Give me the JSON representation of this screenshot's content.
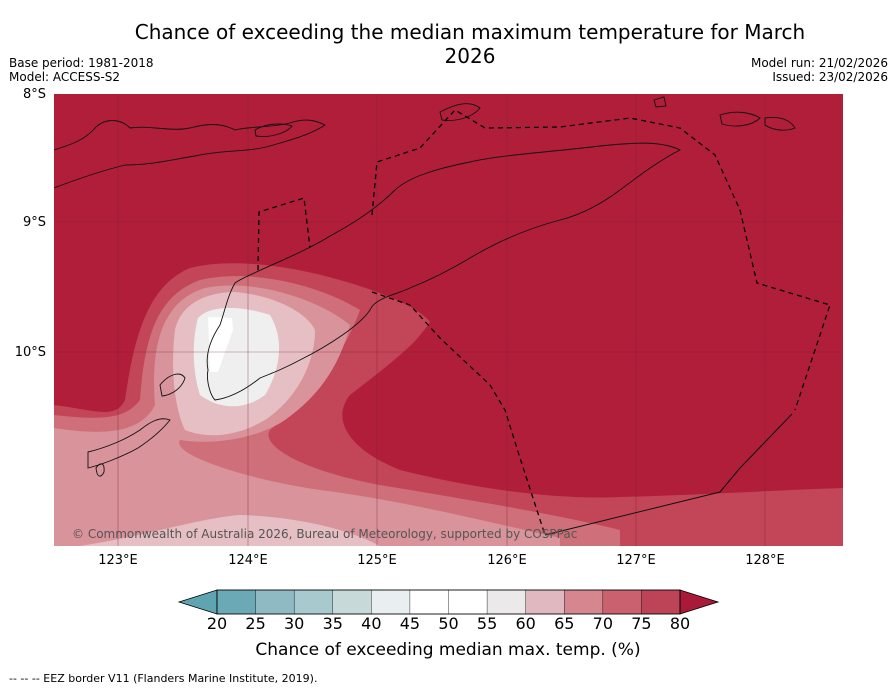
{
  "title": "Chance of exceeding the median maximum temperature for March 2026",
  "meta_left": {
    "base_period": "Base period: 1981-2018",
    "model": "Model: ACCESS-S2"
  },
  "meta_right": {
    "model_run": "Model run: 21/02/2026",
    "issued": "Issued: 23/02/2026"
  },
  "latitude_labels": [
    "8°S",
    "9°S",
    "10°S"
  ],
  "longitude_labels": [
    "123°E",
    "124°E",
    "125°E",
    "126°E",
    "127°E",
    "128°E"
  ],
  "copyright": "© Commonwealth of Australia 2026, Bureau of Meteorology, supported by COSPPac",
  "colorbar": {
    "label": "Chance of exceeding median max. temp. (%)",
    "ticks": [
      "20",
      "25",
      "30",
      "35",
      "40",
      "45",
      "50",
      "55",
      "60",
      "65",
      "70",
      "75",
      "80"
    ],
    "colors": [
      "#5fa4b1",
      "#6ba9b7",
      "#8fbac4",
      "#a8c9cd",
      "#c8d9d9",
      "#e9eef0",
      "#ffffff",
      "#ffffff",
      "#ebe9ea",
      "#e0b8bf",
      "#d5868f",
      "#c9626e",
      "#bd4456",
      "#a81a38"
    ]
  },
  "legend_note": "--  --  -- EEZ border V11 (Flanders Marine Institute, 2019).",
  "colors": {
    "dominant": "#b01e3a",
    "band75": "#c24657",
    "band70": "#cf6f7a",
    "band65": "#d9939b",
    "band60": "#e6bfc4",
    "band55": "#efefef"
  }
}
